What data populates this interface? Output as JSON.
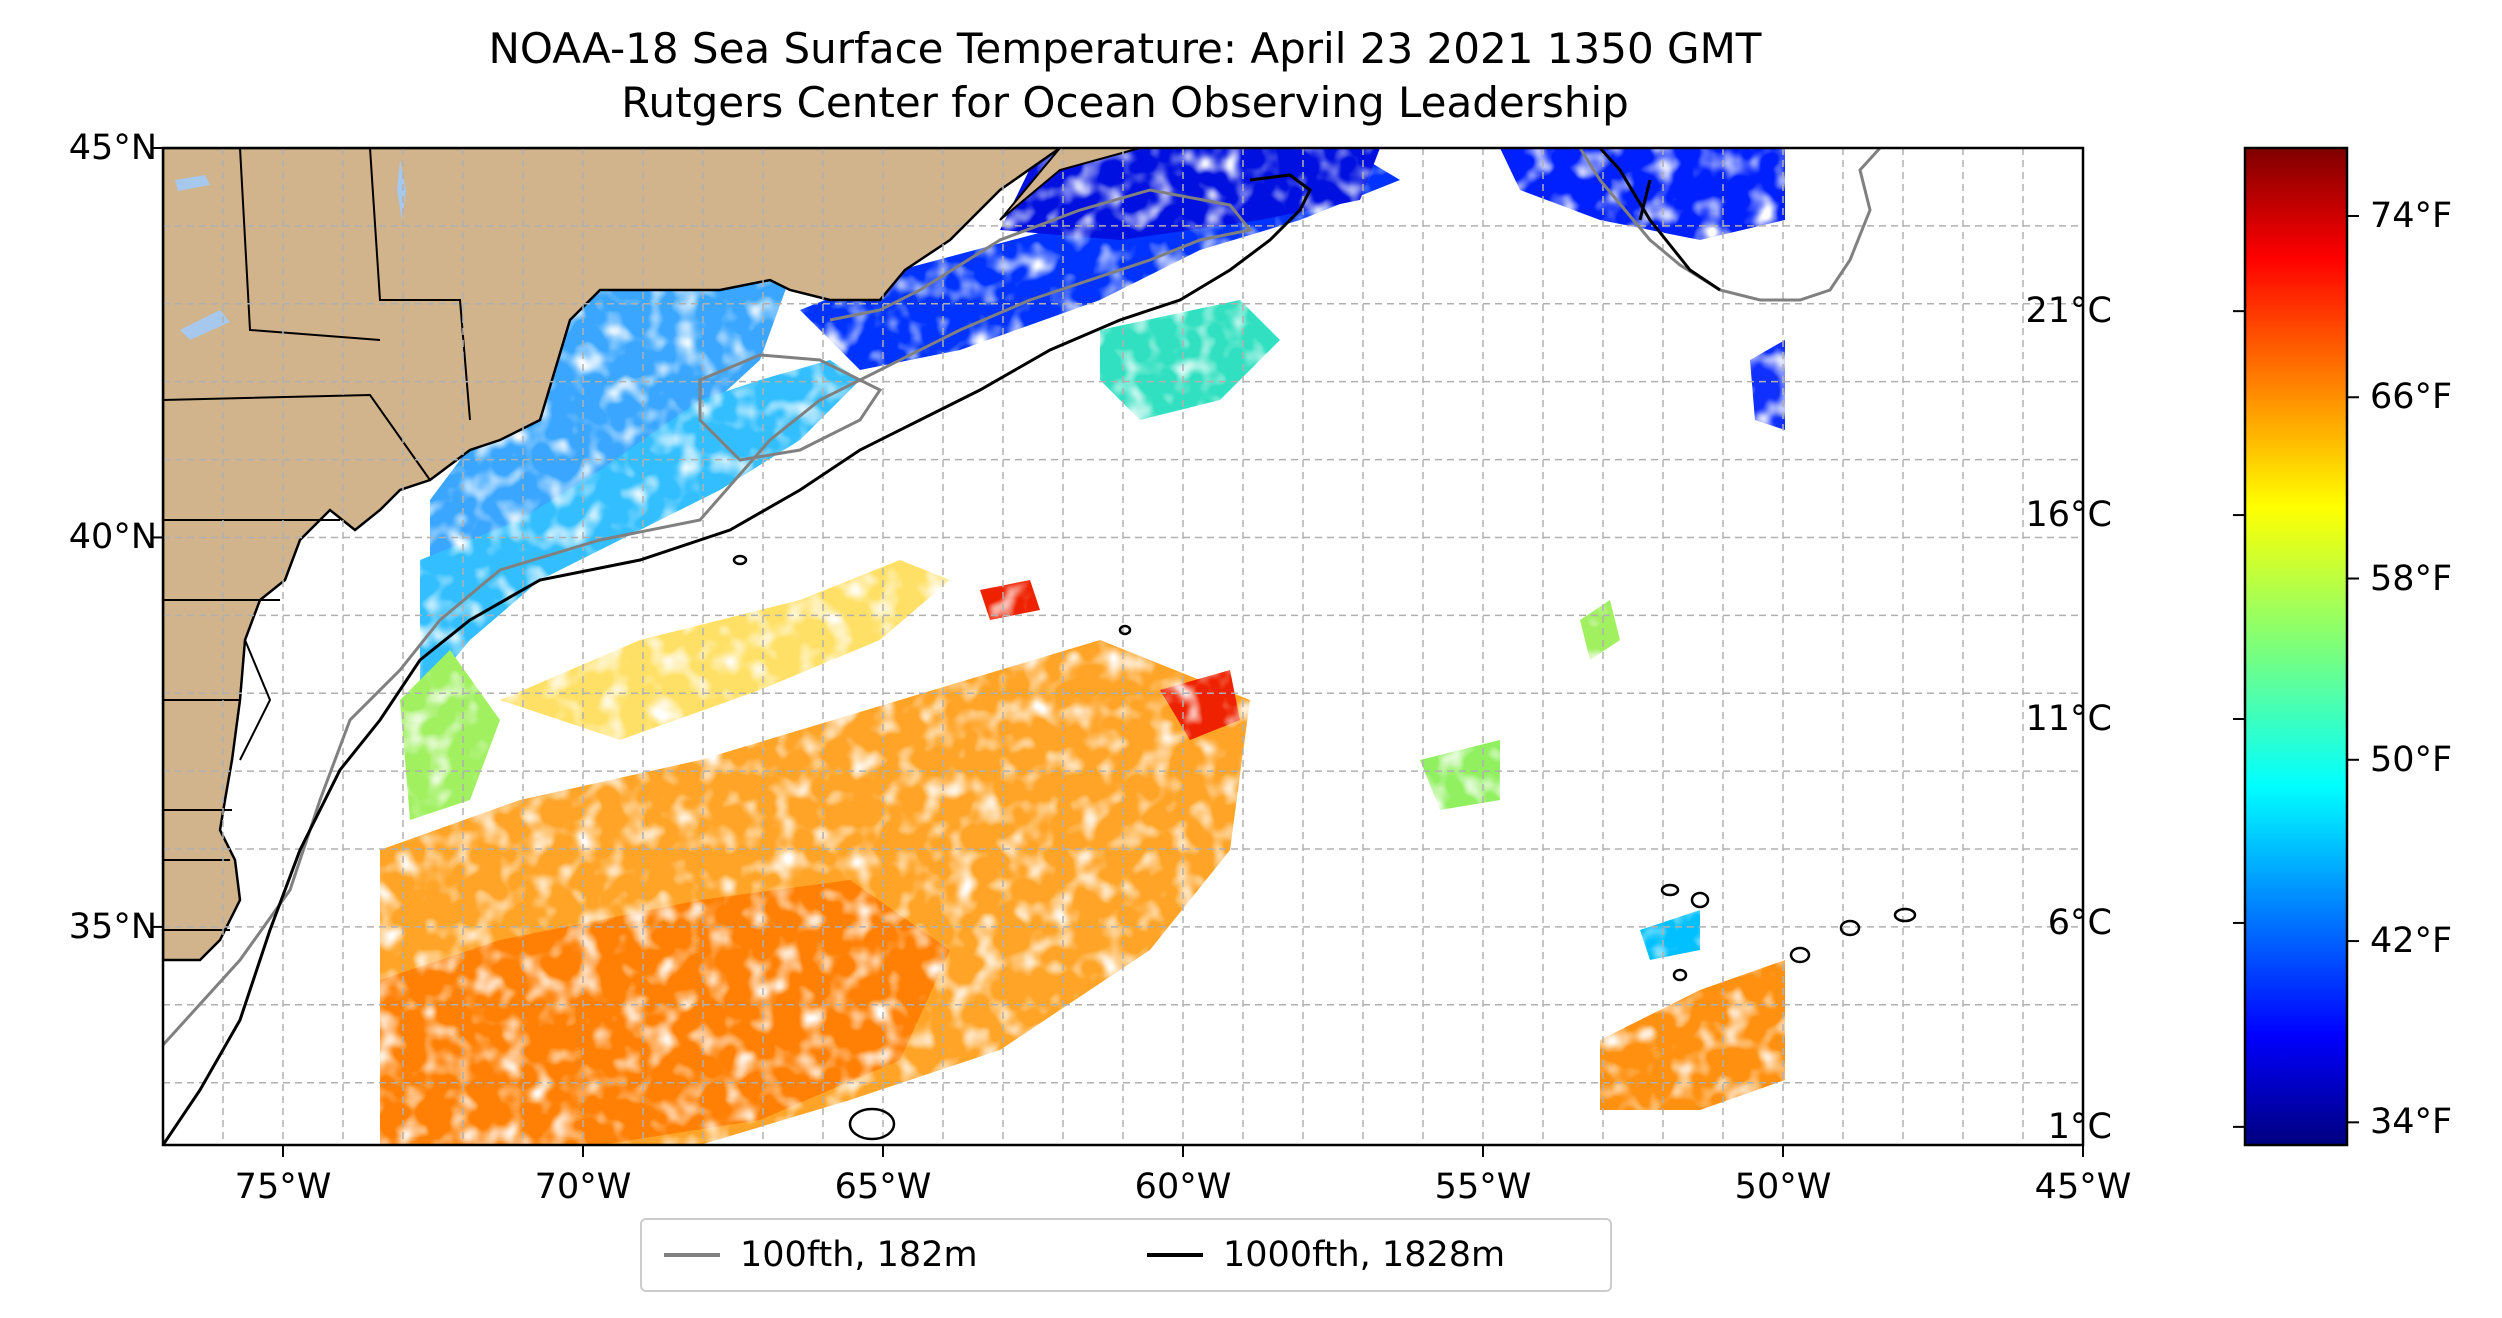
{
  "title": {
    "line1": "NOAA-18 Sea Surface Temperature: April 23 2021 1350 GMT",
    "line2": "Rutgers Center for Ocean Observing Leadership"
  },
  "map": {
    "lon_range": [
      -77,
      -45
    ],
    "lat_range": [
      32.2,
      45
    ],
    "x_ticks": [
      {
        "lon": -75,
        "label": "75°W"
      },
      {
        "lon": -70,
        "label": "70°W"
      },
      {
        "lon": -65,
        "label": "65°W"
      },
      {
        "lon": -60,
        "label": "60°W"
      },
      {
        "lon": -55,
        "label": "55°W"
      },
      {
        "lon": -50,
        "label": "50°W"
      },
      {
        "lon": -45,
        "label": "45°W"
      }
    ],
    "y_ticks": [
      {
        "lat": 35,
        "label": "35°N"
      },
      {
        "lat": 40,
        "label": "40°N"
      },
      {
        "lat": 45,
        "label": "45°N"
      }
    ],
    "gridlines": true,
    "land_color": "#d2b48c",
    "lake_color": "#a6c8ec"
  },
  "colorbar": {
    "colormap": "jet",
    "fahrenheit_labels": [
      "34°F",
      "42°F",
      "50°F",
      "58°F",
      "66°F",
      "74°F"
    ],
    "celsius_labels": [
      "1°C",
      "6°C",
      "11°C",
      "16°C",
      "21°C"
    ],
    "fahrenheit_values": [
      34,
      42,
      50,
      58,
      66,
      74
    ],
    "range_f": [
      33,
      77
    ]
  },
  "legend": {
    "items": [
      {
        "label": "100fth, 182m",
        "color": "#808080"
      },
      {
        "label": "1000fth, 1828m",
        "color": "#000000"
      }
    ]
  }
}
